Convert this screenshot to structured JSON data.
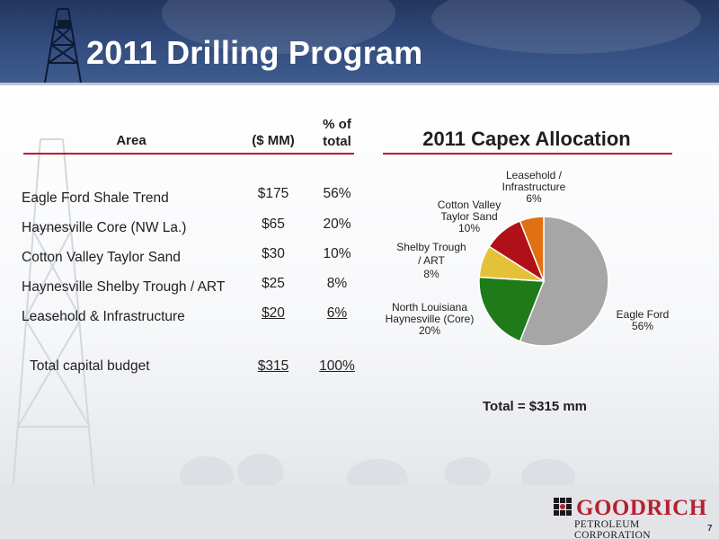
{
  "slide": {
    "title": "2011 Drilling Program",
    "page_number": "7"
  },
  "table": {
    "headers": {
      "area": "Area",
      "amount": "($ MM)",
      "pct_line1": "% of",
      "pct_line2": "total"
    },
    "rows": [
      {
        "area": "Eagle Ford Shale Trend",
        "amount": "$175",
        "pct": "56%"
      },
      {
        "area": "Haynesville Core (NW La.)",
        "amount": "$65",
        "pct": "20%"
      },
      {
        "area": "Cotton Valley Taylor Sand",
        "amount": "$30",
        "pct": "10%"
      },
      {
        "area": "Haynesville Shelby Trough / ART",
        "amount": "$25",
        "pct": "8%"
      },
      {
        "area": "Leasehold & Infrastructure",
        "amount": "$20",
        "pct": "6%"
      }
    ],
    "total": {
      "label": "Total capital budget",
      "amount": "$315",
      "pct": "100%"
    }
  },
  "chart_data": {
    "type": "pie",
    "title": "2011 Capex Allocation",
    "start_angle_deg": 0,
    "direction": "clockwise",
    "slices": [
      {
        "label_lines": [
          "Eagle Ford",
          "56%"
        ],
        "value": 56,
        "color": "#a6a6a6"
      },
      {
        "label_lines": [
          "North Louisiana",
          "Haynesville (Core)",
          "20%"
        ],
        "value": 20,
        "color": "#1f7a1a"
      },
      {
        "label_lines": [
          "Shelby Trough",
          "/ ART",
          "8%"
        ],
        "value": 8,
        "color": "#e3c23a"
      },
      {
        "label_lines": [
          "Cotton Valley",
          "Taylor Sand",
          "10%"
        ],
        "value": 10,
        "color": "#b01018"
      },
      {
        "label_lines": [
          "Leasehold /",
          "Infrastructure",
          "6%"
        ],
        "value": 6,
        "color": "#e07010"
      }
    ],
    "total_note": "Total = $315 mm"
  },
  "logo": {
    "name": "GOODRICH",
    "subtitle": "PETROLEUM CORPORATION"
  },
  "colors": {
    "accent_red": "#c0102c",
    "header_navy": "#30497a"
  }
}
